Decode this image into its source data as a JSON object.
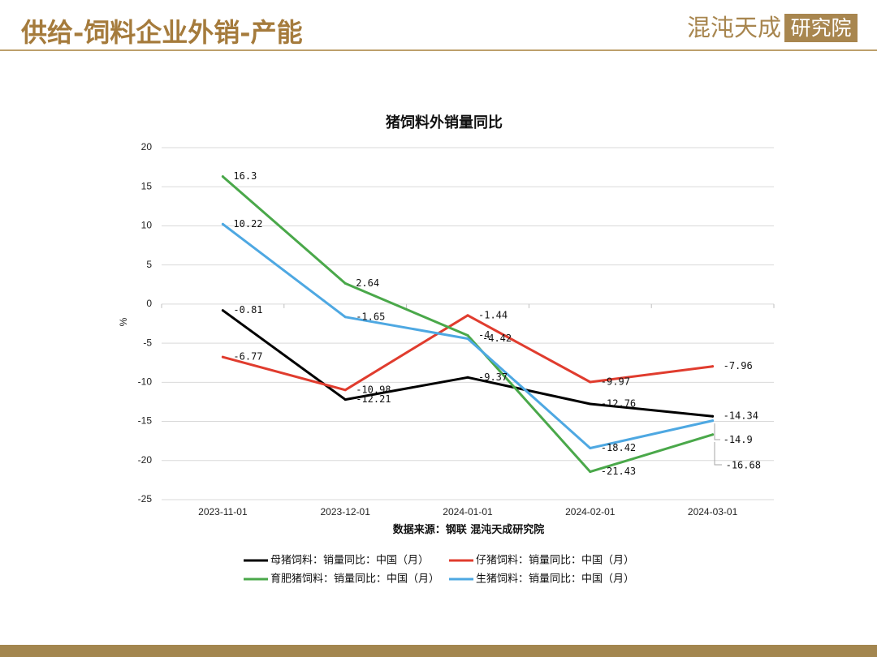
{
  "header": {
    "title": "供给-饲料企业外销-产能",
    "logo_text": "混沌天成",
    "logo_seal": "研究院"
  },
  "theme": {
    "accent": "#a57b3c",
    "logo": "#a8864f",
    "footer": "#a3864f",
    "grid": "#d9d9d9"
  },
  "chart_data": {
    "type": "line",
    "title": "猪饲料外销量同比",
    "ylabel": "%",
    "categories": [
      "2023-11-01",
      "2023-12-01",
      "2024-01-01",
      "2024-02-01",
      "2024-03-01"
    ],
    "ylim": [
      -25,
      20
    ],
    "yticks": [
      20,
      15,
      10,
      5,
      0,
      -5,
      -10,
      -15,
      -20,
      -25
    ],
    "grid": true,
    "legend_position": "bottom",
    "source": "数据来源：钢联 混沌天成研究院",
    "series": [
      {
        "name": "母猪饲料：销量同比：中国（月）",
        "color": "#000000",
        "values": [
          -0.81,
          -12.21,
          -9.37,
          -12.76,
          -14.34
        ]
      },
      {
        "name": "仔猪饲料：销量同比：中国（月）",
        "color": "#e03c2e",
        "values": [
          -6.77,
          -10.98,
          -1.44,
          -9.97,
          -7.96
        ]
      },
      {
        "name": "育肥猪饲料：销量同比：中国（月）",
        "color": "#4aa84a",
        "values": [
          16.3,
          2.64,
          -4,
          -21.43,
          -16.68
        ]
      },
      {
        "name": "生猪饲料：销量同比：中国（月）",
        "color": "#4ea8e2",
        "values": [
          10.22,
          -1.65,
          -4.42,
          -18.42,
          -14.9
        ]
      }
    ]
  }
}
